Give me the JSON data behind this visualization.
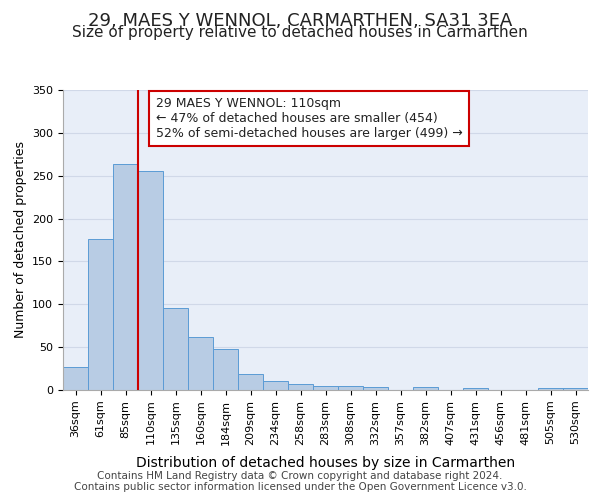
{
  "title": "29, MAES Y WENNOL, CARMARTHEN, SA31 3EA",
  "subtitle": "Size of property relative to detached houses in Carmarthen",
  "xlabel": "Distribution of detached houses by size in Carmarthen",
  "ylabel": "Number of detached properties",
  "categories": [
    "36sqm",
    "61sqm",
    "85sqm",
    "110sqm",
    "135sqm",
    "160sqm",
    "184sqm",
    "209sqm",
    "234sqm",
    "258sqm",
    "283sqm",
    "308sqm",
    "332sqm",
    "357sqm",
    "382sqm",
    "407sqm",
    "431sqm",
    "456sqm",
    "481sqm",
    "505sqm",
    "530sqm"
  ],
  "bar_heights": [
    27,
    176,
    264,
    255,
    96,
    62,
    48,
    19,
    11,
    7,
    5,
    5,
    4,
    0,
    3,
    0,
    2,
    0,
    0,
    2,
    2
  ],
  "bar_color": "#b8cce4",
  "bar_edge_color": "#5b9bd5",
  "vline_color": "#cc0000",
  "vline_pos": 2.5,
  "annotation_text": "29 MAES Y WENNOL: 110sqm\n← 47% of detached houses are smaller (454)\n52% of semi-detached houses are larger (499) →",
  "annotation_box_color": "#ffffff",
  "annotation_box_edge": "#cc0000",
  "ylim": [
    0,
    350
  ],
  "yticks": [
    0,
    50,
    100,
    150,
    200,
    250,
    300,
    350
  ],
  "grid_color": "#d0d8e8",
  "background_color": "#e8eef8",
  "footer_text": "Contains HM Land Registry data © Crown copyright and database right 2024.\nContains public sector information licensed under the Open Government Licence v3.0.",
  "title_fontsize": 13,
  "subtitle_fontsize": 11,
  "xlabel_fontsize": 10,
  "ylabel_fontsize": 9,
  "tick_fontsize": 8,
  "annotation_fontsize": 9,
  "footer_fontsize": 7.5
}
